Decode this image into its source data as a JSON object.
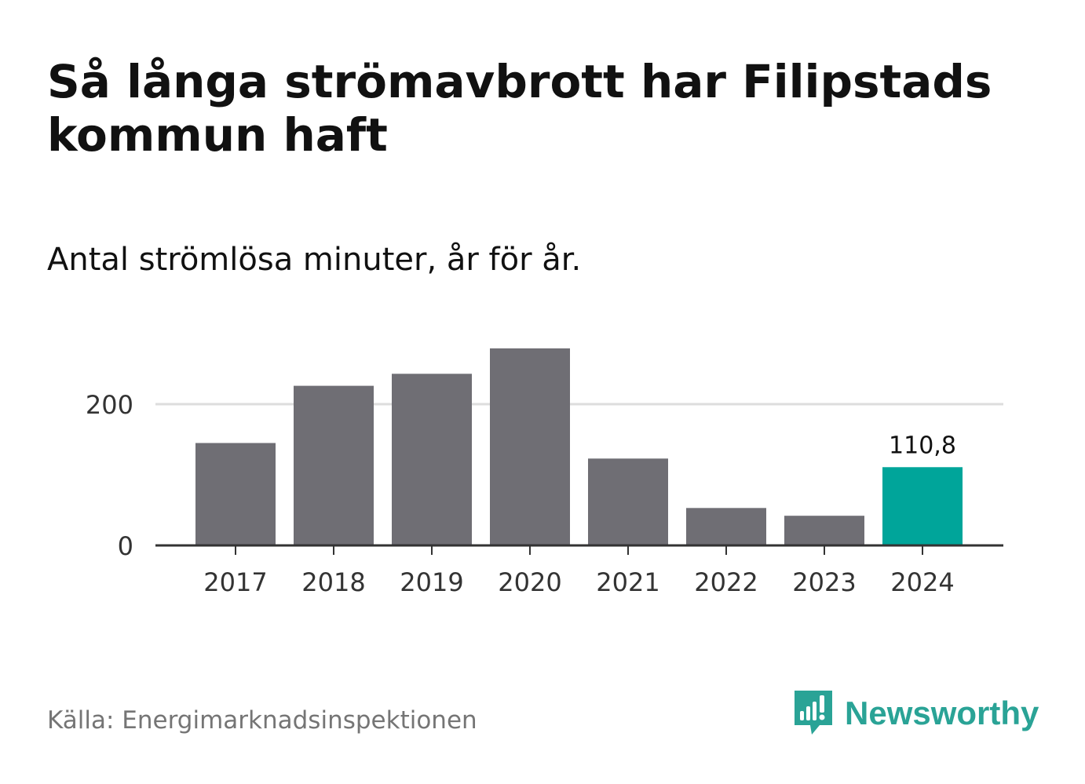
{
  "title": "Så långa strömavbrott har Filipstads kommun haft",
  "subtitle": "Antal strömlösa minuter, år för år.",
  "source": "Källa: Energimarknadsinspektionen",
  "brand": {
    "name": "Newsworthy",
    "icon": "newsworthy-logo-icon",
    "color": "#2aa396"
  },
  "colors": {
    "bar": "#6f6e74",
    "highlight": "#00a59a",
    "grid": "#dddddd",
    "axis": "#333333"
  },
  "chart_data": {
    "type": "bar",
    "categories": [
      "2017",
      "2018",
      "2019",
      "2020",
      "2021",
      "2022",
      "2023",
      "2024"
    ],
    "values": [
      145,
      226,
      243,
      279,
      123,
      53,
      42,
      110.8
    ],
    "highlight_index": 7,
    "data_labels": {
      "7": "110,8"
    },
    "yticks": [
      0,
      200
    ],
    "ylim": [
      0,
      300
    ],
    "grid": true,
    "xlabel": "",
    "ylabel": ""
  }
}
